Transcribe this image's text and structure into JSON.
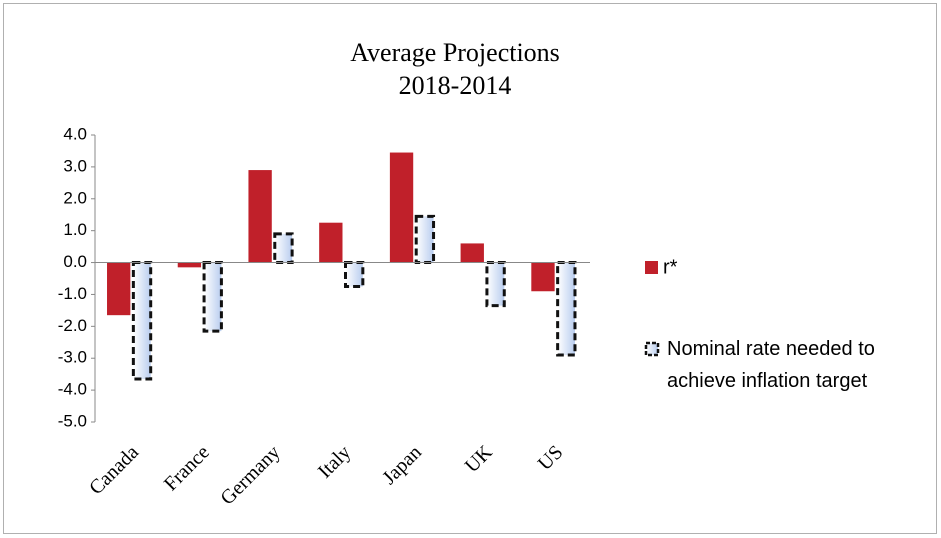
{
  "chart_data": {
    "type": "bar",
    "title": "Average Projections",
    "subtitle": "2018-2014",
    "categories": [
      "Canada",
      "France",
      "Germany",
      "Italy",
      "Japan",
      "UK",
      "US"
    ],
    "series": [
      {
        "name": "r*",
        "color": "#c0202a",
        "values": [
          -1.65,
          -0.15,
          2.9,
          1.25,
          3.45,
          0.6,
          -0.9
        ]
      },
      {
        "name": "Nominal rate needed to achieve inflation target",
        "color": "#b9cdef",
        "values": [
          -3.65,
          -2.15,
          0.9,
          -0.75,
          1.45,
          -1.35,
          -2.9
        ]
      }
    ],
    "ylim": [
      -5,
      4
    ],
    "yticks": [
      {
        "value": 4,
        "label": "4.0"
      },
      {
        "value": 3,
        "label": "3.0"
      },
      {
        "value": 2,
        "label": "2.0"
      },
      {
        "value": 1,
        "label": "1.0"
      },
      {
        "value": 0,
        "label": "0.0"
      },
      {
        "value": -1,
        "label": "-1.0"
      },
      {
        "value": -2,
        "label": "-2.0"
      },
      {
        "value": -3,
        "label": "-3.0"
      },
      {
        "value": -4,
        "label": "-4.0"
      },
      {
        "value": -5,
        "label": "-5.0"
      }
    ],
    "legend": "right"
  }
}
